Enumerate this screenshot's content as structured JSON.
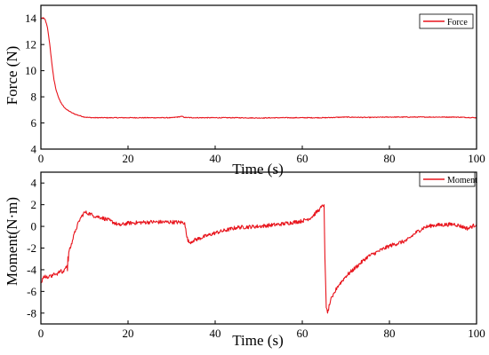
{
  "colors": {
    "series": "#e8141c",
    "axis": "#000000",
    "background": "#ffffff"
  },
  "chart_data": [
    {
      "type": "line",
      "xlabel": "Time (s)",
      "ylabel": "Force (N)",
      "xlim": [
        0,
        100
      ],
      "ylim": [
        4,
        15
      ],
      "xticks": [
        0,
        20,
        40,
        60,
        80,
        100
      ],
      "yticks": [
        4,
        6,
        8,
        10,
        12,
        14
      ],
      "grid": false,
      "legend_position": "top-right",
      "series": [
        {
          "name": "Force",
          "color": "#e8141c",
          "noise": 0.03,
          "x": [
            0,
            0.5,
            1.0,
            1.5,
            2.0,
            2.5,
            3.0,
            3.5,
            4.0,
            4.5,
            5.0,
            5.5,
            6.0,
            7.0,
            8.0,
            9.0,
            10.0,
            11.0,
            12.0,
            15.0,
            20.0,
            25.0,
            30.0,
            32.5,
            33.0,
            35.0,
            40.0,
            45.0,
            50.0,
            55.0,
            60.0,
            65.0,
            70.0,
            75.0,
            80.0,
            85.0,
            90.0,
            95.0,
            100.0
          ],
          "y": [
            14.0,
            14.05,
            13.9,
            13.3,
            12.1,
            10.6,
            9.3,
            8.5,
            8.0,
            7.6,
            7.35,
            7.15,
            7.0,
            6.8,
            6.65,
            6.55,
            6.45,
            6.42,
            6.4,
            6.4,
            6.4,
            6.4,
            6.4,
            6.5,
            6.42,
            6.4,
            6.4,
            6.4,
            6.38,
            6.4,
            6.4,
            6.4,
            6.45,
            6.42,
            6.45,
            6.45,
            6.45,
            6.45,
            6.4
          ]
        }
      ]
    },
    {
      "type": "line",
      "xlabel": "Time (s)",
      "ylabel": "Moment(N·m)",
      "xlim": [
        0,
        100
      ],
      "ylim": [
        -9,
        5
      ],
      "xticks": [
        0,
        20,
        40,
        60,
        80,
        100
      ],
      "yticks": [
        -8,
        -6,
        -4,
        -2,
        0,
        2,
        4
      ],
      "grid": false,
      "legend_position": "top-right",
      "series": [
        {
          "name": "Moment",
          "color": "#e8141c",
          "noise": 0.18,
          "x": [
            0,
            0.5,
            1.0,
            1.5,
            2.0,
            2.5,
            3.0,
            3.5,
            4.0,
            4.5,
            5.0,
            5.5,
            6.0,
            6.1,
            6.2,
            6.3,
            6.4,
            7.0,
            8.0,
            9.0,
            10.0,
            11.0,
            12.0,
            14.0,
            16.0,
            18.0,
            20.0,
            25.0,
            30.0,
            33.0,
            33.5,
            34.0,
            35.0,
            40.0,
            45.0,
            50.0,
            55.0,
            60.0,
            62.0,
            64.0,
            65.0,
            65.2,
            65.5,
            65.8,
            66.5,
            67.0,
            68.0,
            70.0,
            75.0,
            80.0,
            84.0,
            86.0,
            88.0,
            90.0,
            95.0,
            98.0,
            100.0
          ],
          "y": [
            -5.2,
            -4.8,
            -4.5,
            -4.8,
            -4.5,
            -4.7,
            -4.3,
            -4.4,
            -4.3,
            -4.1,
            -4.3,
            -3.9,
            -3.6,
            -4.1,
            -2.8,
            -3.2,
            -2.4,
            -1.6,
            -0.3,
            0.7,
            1.3,
            1.2,
            1.0,
            0.8,
            0.5,
            0.1,
            0.3,
            0.4,
            0.4,
            0.35,
            -1.0,
            -1.5,
            -1.3,
            -0.6,
            -0.1,
            0.0,
            0.2,
            0.5,
            0.8,
            1.6,
            2.0,
            -3.0,
            -7.5,
            -8.0,
            -6.8,
            -6.5,
            -5.6,
            -4.6,
            -2.8,
            -1.8,
            -1.3,
            -0.6,
            -0.1,
            0.1,
            0.2,
            -0.2,
            0.2
          ]
        }
      ]
    }
  ]
}
